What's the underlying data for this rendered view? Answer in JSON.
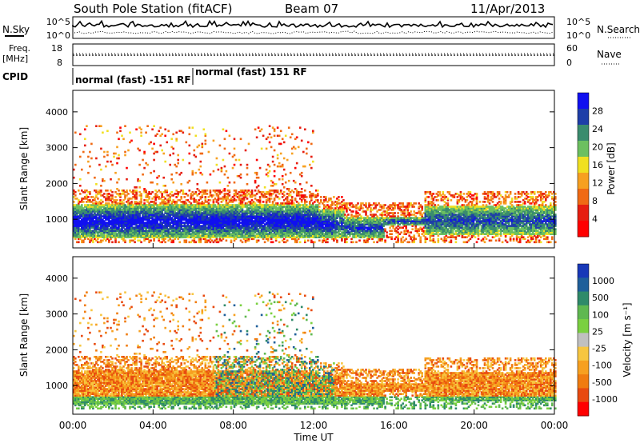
{
  "header": {
    "station": "South Pole Station (fitACF)",
    "beam": "Beam 07",
    "date": "11/Apr/2013"
  },
  "summary_panels": {
    "nsky": {
      "label": "N.Sky",
      "left_ticks": [
        "10^5",
        "10^0"
      ],
      "right_ticks": [
        "10^5",
        "10^0"
      ],
      "right_label": "N.Search"
    },
    "freq": {
      "label_line1": "Freq.",
      "label_line2": "[MHz]",
      "left_ticks": [
        "18",
        "8"
      ],
      "right_ticks": [
        "60",
        "0"
      ],
      "right_label": "Nave"
    },
    "cpid": {
      "label": "CPID",
      "segments": [
        {
          "text": "normal (fast) -151 RF",
          "start_hour": 0,
          "end_hour": 6
        },
        {
          "text": "normal (fast) 151 RF",
          "start_hour": 6,
          "end_hour": 24
        }
      ]
    }
  },
  "chart_data": [
    {
      "type": "heatmap",
      "name": "Power",
      "ylabel": "Slant Range [km]",
      "yticks": [
        "1000",
        "2000",
        "3000",
        "4000"
      ],
      "ylim": [
        200,
        4600
      ],
      "xlim": [
        0,
        24
      ],
      "colorbar_label": "Power [dB]",
      "colorbar_ticks": [
        "4",
        "8",
        "12",
        "16",
        "20",
        "24",
        "28"
      ],
      "colorbar_colors": [
        "#1010f0",
        "#1e3ea8",
        "#3a8c6e",
        "#6cc060",
        "#f0e020",
        "#f7a020",
        "#f06a14",
        "#e61e10",
        "#ff0000"
      ]
    },
    {
      "type": "heatmap",
      "name": "Velocity",
      "ylabel": "Slant Range [km]",
      "yticks": [
        "1000",
        "2000",
        "3000",
        "4000"
      ],
      "ylim": [
        200,
        4600
      ],
      "xlim": [
        0,
        24
      ],
      "xlabel": "Time UT",
      "xticks": [
        "00:00",
        "04:00",
        "08:00",
        "12:00",
        "16:00",
        "20:00",
        "00:00"
      ],
      "colorbar_label": "Velocity [m s⁻¹]",
      "colorbar_ticks": [
        "1000",
        "500",
        "100",
        "25",
        "-25",
        "-100",
        "-500",
        "-1000"
      ],
      "colorbar_colors": [
        "#1838b8",
        "#1f5f9a",
        "#2f8a6a",
        "#5fb850",
        "#7ad040",
        "#c0c0c0",
        "#f7c640",
        "#f7a020",
        "#f07c10",
        "#e84a10",
        "#ff0000"
      ]
    }
  ]
}
